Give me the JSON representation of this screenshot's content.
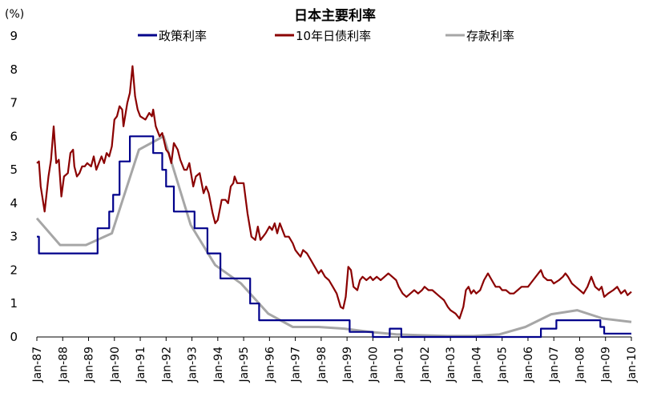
{
  "chart_data": {
    "type": "line",
    "title": "日本主要利率",
    "unit_label": "(%)",
    "ylim": [
      0,
      9
    ],
    "yticks": [
      "0",
      "1",
      "2",
      "3",
      "4",
      "5",
      "6",
      "7",
      "8",
      "9"
    ],
    "xlim": [
      1987.0,
      2010.0
    ],
    "xticks": [
      "Jan-87",
      "Jan-88",
      "Jan-89",
      "Jan-90",
      "Jan-91",
      "Jan-92",
      "Jan-93",
      "Jan-94",
      "Jan-95",
      "Jan-96",
      "Jan-97",
      "Jan-98",
      "Jan-99",
      "Jan-00",
      "Jan-01",
      "Jan-02",
      "Jan-03",
      "Jan-04",
      "Jan-05",
      "Jan-06",
      "Jan-07",
      "Jan-08",
      "Jan-09",
      "Jan-10"
    ],
    "legend_position": "top",
    "series": [
      {
        "name": "政策利率",
        "color": "#00008b",
        "step": true,
        "points": [
          [
            1987.0,
            3.0
          ],
          [
            1987.08,
            2.5
          ],
          [
            1989.35,
            3.25
          ],
          [
            1989.8,
            3.75
          ],
          [
            1989.95,
            4.25
          ],
          [
            1990.2,
            5.25
          ],
          [
            1990.6,
            6.0
          ],
          [
            1991.5,
            5.5
          ],
          [
            1991.85,
            5.0
          ],
          [
            1992.0,
            4.5
          ],
          [
            1992.3,
            3.75
          ],
          [
            1993.1,
            3.25
          ],
          [
            1993.6,
            2.5
          ],
          [
            1994.0,
            2.5
          ],
          [
            1994.1,
            1.75
          ],
          [
            1995.25,
            1.0
          ],
          [
            1995.6,
            0.5
          ],
          [
            1999.1,
            0.15
          ],
          [
            2000.0,
            0.0
          ],
          [
            2000.65,
            0.25
          ],
          [
            2001.1,
            0.0
          ],
          [
            2006.5,
            0.25
          ],
          [
            2007.1,
            0.5
          ],
          [
            2008.8,
            0.3
          ],
          [
            2008.95,
            0.1
          ],
          [
            2010.0,
            0.1
          ]
        ]
      },
      {
        "name": "10年日债利率",
        "color": "#8b0000",
        "step": false,
        "points": [
          [
            1987.0,
            5.2
          ],
          [
            1987.08,
            5.25
          ],
          [
            1987.15,
            4.5
          ],
          [
            1987.3,
            3.75
          ],
          [
            1987.45,
            4.8
          ],
          [
            1987.55,
            5.3
          ],
          [
            1987.65,
            6.3
          ],
          [
            1987.75,
            5.2
          ],
          [
            1987.85,
            5.3
          ],
          [
            1987.95,
            4.2
          ],
          [
            1988.05,
            4.8
          ],
          [
            1988.2,
            4.9
          ],
          [
            1988.3,
            5.5
          ],
          [
            1988.4,
            5.6
          ],
          [
            1988.45,
            5.1
          ],
          [
            1988.55,
            4.8
          ],
          [
            1988.65,
            4.9
          ],
          [
            1988.75,
            5.1
          ],
          [
            1988.85,
            5.1
          ],
          [
            1988.95,
            5.2
          ],
          [
            1989.1,
            5.1
          ],
          [
            1989.2,
            5.4
          ],
          [
            1989.3,
            5.0
          ],
          [
            1989.4,
            5.2
          ],
          [
            1989.5,
            5.4
          ],
          [
            1989.6,
            5.2
          ],
          [
            1989.7,
            5.5
          ],
          [
            1989.8,
            5.4
          ],
          [
            1989.9,
            5.7
          ],
          [
            1990.0,
            6.5
          ],
          [
            1990.1,
            6.6
          ],
          [
            1990.2,
            6.9
          ],
          [
            1990.3,
            6.8
          ],
          [
            1990.35,
            6.3
          ],
          [
            1990.5,
            7.0
          ],
          [
            1990.6,
            7.3
          ],
          [
            1990.7,
            8.1
          ],
          [
            1990.8,
            7.2
          ],
          [
            1990.9,
            6.8
          ],
          [
            1991.0,
            6.6
          ],
          [
            1991.2,
            6.5
          ],
          [
            1991.35,
            6.7
          ],
          [
            1991.45,
            6.6
          ],
          [
            1991.5,
            6.8
          ],
          [
            1991.6,
            6.3
          ],
          [
            1991.75,
            6.0
          ],
          [
            1991.85,
            6.1
          ],
          [
            1992.0,
            5.6
          ],
          [
            1992.1,
            5.5
          ],
          [
            1992.2,
            5.2
          ],
          [
            1992.3,
            5.8
          ],
          [
            1992.45,
            5.6
          ],
          [
            1992.55,
            5.3
          ],
          [
            1992.7,
            5.0
          ],
          [
            1992.8,
            5.0
          ],
          [
            1992.9,
            5.2
          ],
          [
            1993.05,
            4.5
          ],
          [
            1993.15,
            4.8
          ],
          [
            1993.3,
            4.9
          ],
          [
            1993.45,
            4.3
          ],
          [
            1993.55,
            4.5
          ],
          [
            1993.65,
            4.3
          ],
          [
            1993.8,
            3.7
          ],
          [
            1993.9,
            3.4
          ],
          [
            1994.0,
            3.5
          ],
          [
            1994.15,
            4.1
          ],
          [
            1994.3,
            4.1
          ],
          [
            1994.4,
            4.0
          ],
          [
            1994.5,
            4.5
          ],
          [
            1994.6,
            4.6
          ],
          [
            1994.65,
            4.8
          ],
          [
            1994.75,
            4.6
          ],
          [
            1994.85,
            4.6
          ],
          [
            1995.0,
            4.6
          ],
          [
            1995.15,
            3.7
          ],
          [
            1995.3,
            3.0
          ],
          [
            1995.45,
            2.9
          ],
          [
            1995.55,
            3.3
          ],
          [
            1995.65,
            2.9
          ],
          [
            1995.75,
            3.0
          ],
          [
            1995.85,
            3.1
          ],
          [
            1996.0,
            3.3
          ],
          [
            1996.1,
            3.2
          ],
          [
            1996.2,
            3.4
          ],
          [
            1996.3,
            3.1
          ],
          [
            1996.4,
            3.4
          ],
          [
            1996.5,
            3.2
          ],
          [
            1996.6,
            3.0
          ],
          [
            1996.75,
            3.0
          ],
          [
            1996.9,
            2.8
          ],
          [
            1997.0,
            2.6
          ],
          [
            1997.1,
            2.5
          ],
          [
            1997.2,
            2.4
          ],
          [
            1997.3,
            2.6
          ],
          [
            1997.45,
            2.5
          ],
          [
            1997.6,
            2.3
          ],
          [
            1997.75,
            2.1
          ],
          [
            1997.9,
            1.9
          ],
          [
            1998.0,
            2.0
          ],
          [
            1998.15,
            1.8
          ],
          [
            1998.3,
            1.7
          ],
          [
            1998.45,
            1.5
          ],
          [
            1998.6,
            1.3
          ],
          [
            1998.75,
            0.9
          ],
          [
            1998.85,
            0.85
          ],
          [
            1998.95,
            1.2
          ],
          [
            1999.05,
            2.1
          ],
          [
            1999.15,
            2.0
          ],
          [
            1999.25,
            1.5
          ],
          [
            1999.4,
            1.4
          ],
          [
            1999.5,
            1.7
          ],
          [
            1999.6,
            1.8
          ],
          [
            1999.75,
            1.7
          ],
          [
            1999.9,
            1.8
          ],
          [
            2000.0,
            1.7
          ],
          [
            2000.15,
            1.8
          ],
          [
            2000.3,
            1.7
          ],
          [
            2000.45,
            1.8
          ],
          [
            2000.6,
            1.9
          ],
          [
            2000.75,
            1.8
          ],
          [
            2000.9,
            1.7
          ],
          [
            2001.0,
            1.5
          ],
          [
            2001.15,
            1.3
          ],
          [
            2001.3,
            1.2
          ],
          [
            2001.45,
            1.3
          ],
          [
            2001.6,
            1.4
          ],
          [
            2001.75,
            1.3
          ],
          [
            2001.9,
            1.4
          ],
          [
            2002.0,
            1.5
          ],
          [
            2002.15,
            1.4
          ],
          [
            2002.3,
            1.4
          ],
          [
            2002.45,
            1.3
          ],
          [
            2002.6,
            1.2
          ],
          [
            2002.75,
            1.1
          ],
          [
            2002.9,
            0.9
          ],
          [
            2003.0,
            0.8
          ],
          [
            2003.2,
            0.7
          ],
          [
            2003.35,
            0.55
          ],
          [
            2003.5,
            0.9
          ],
          [
            2003.6,
            1.4
          ],
          [
            2003.7,
            1.5
          ],
          [
            2003.8,
            1.3
          ],
          [
            2003.9,
            1.4
          ],
          [
            2004.0,
            1.3
          ],
          [
            2004.15,
            1.4
          ],
          [
            2004.3,
            1.7
          ],
          [
            2004.45,
            1.9
          ],
          [
            2004.6,
            1.7
          ],
          [
            2004.75,
            1.5
          ],
          [
            2004.9,
            1.5
          ],
          [
            2005.0,
            1.4
          ],
          [
            2005.15,
            1.4
          ],
          [
            2005.3,
            1.3
          ],
          [
            2005.45,
            1.3
          ],
          [
            2005.6,
            1.4
          ],
          [
            2005.75,
            1.5
          ],
          [
            2005.9,
            1.5
          ],
          [
            2006.0,
            1.5
          ],
          [
            2006.2,
            1.7
          ],
          [
            2006.4,
            1.9
          ],
          [
            2006.5,
            2.0
          ],
          [
            2006.6,
            1.8
          ],
          [
            2006.75,
            1.7
          ],
          [
            2006.9,
            1.7
          ],
          [
            2007.0,
            1.6
          ],
          [
            2007.2,
            1.7
          ],
          [
            2007.35,
            1.8
          ],
          [
            2007.45,
            1.9
          ],
          [
            2007.55,
            1.8
          ],
          [
            2007.7,
            1.6
          ],
          [
            2007.85,
            1.5
          ],
          [
            2008.0,
            1.4
          ],
          [
            2008.15,
            1.3
          ],
          [
            2008.3,
            1.5
          ],
          [
            2008.45,
            1.8
          ],
          [
            2008.6,
            1.5
          ],
          [
            2008.75,
            1.4
          ],
          [
            2008.85,
            1.5
          ],
          [
            2008.95,
            1.2
          ],
          [
            2009.1,
            1.3
          ],
          [
            2009.3,
            1.4
          ],
          [
            2009.45,
            1.5
          ],
          [
            2009.6,
            1.3
          ],
          [
            2009.75,
            1.4
          ],
          [
            2009.85,
            1.25
          ],
          [
            2010.0,
            1.35
          ]
        ]
      },
      {
        "name": "存款利率",
        "color": "#a6a6a6",
        "step": false,
        "points": [
          [
            1987.0,
            3.55
          ],
          [
            1987.9,
            2.75
          ],
          [
            1988.9,
            2.75
          ],
          [
            1989.9,
            3.1
          ],
          [
            1990.95,
            5.6
          ],
          [
            1991.9,
            6.0
          ],
          [
            1992.95,
            3.35
          ],
          [
            1993.9,
            2.15
          ],
          [
            1994.9,
            1.6
          ],
          [
            1995.95,
            0.7
          ],
          [
            1996.9,
            0.3
          ],
          [
            1997.9,
            0.3
          ],
          [
            1998.9,
            0.25
          ],
          [
            1999.9,
            0.15
          ],
          [
            2000.9,
            0.08
          ],
          [
            2001.9,
            0.05
          ],
          [
            2002.9,
            0.03
          ],
          [
            2003.9,
            0.03
          ],
          [
            2004.9,
            0.08
          ],
          [
            2005.9,
            0.3
          ],
          [
            2006.9,
            0.68
          ],
          [
            2007.9,
            0.8
          ],
          [
            2008.9,
            0.55
          ],
          [
            2010.0,
            0.45
          ]
        ]
      }
    ]
  }
}
